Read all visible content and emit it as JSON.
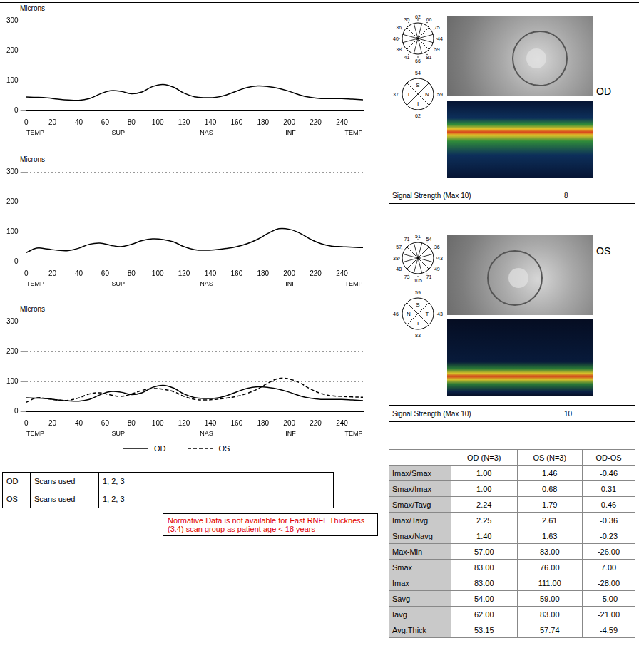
{
  "chart_data": [
    {
      "type": "line",
      "ylabel": "Microns",
      "x": [
        0,
        8,
        16,
        24,
        32,
        40,
        48,
        56,
        64,
        72,
        80,
        88,
        96,
        104,
        112,
        120,
        128,
        136,
        144,
        152,
        160,
        168,
        176,
        184,
        192,
        200,
        208,
        216,
        224,
        232,
        240,
        248,
        256
      ],
      "series": [
        {
          "name": "OD",
          "color": "#000000",
          "line_style": "solid",
          "values": [
            45,
            44,
            42,
            38,
            35,
            34,
            40,
            55,
            66,
            64,
            56,
            62,
            80,
            87,
            78,
            58,
            46,
            43,
            44,
            52,
            65,
            77,
            82,
            80,
            74,
            64,
            52,
            44,
            40,
            40,
            40,
            38,
            36
          ]
        }
      ],
      "xlim": [
        0,
        256
      ],
      "xticks": [
        0,
        20,
        40,
        60,
        80,
        100,
        120,
        140,
        160,
        180,
        200,
        220,
        240
      ],
      "ylim": [
        0,
        300
      ],
      "yticks": [
        0,
        100,
        200,
        300
      ],
      "grid": true,
      "region_labels": [
        {
          "value": 7,
          "label": "TEMP"
        },
        {
          "value": 70,
          "label": "SUP"
        },
        {
          "value": 137,
          "label": "NAS"
        },
        {
          "value": 201,
          "label": "INF"
        },
        {
          "value": 249,
          "label": "TEMP"
        }
      ]
    },
    {
      "type": "line",
      "ylabel": "Microns",
      "x": [
        0,
        8,
        16,
        24,
        32,
        40,
        48,
        56,
        64,
        72,
        80,
        88,
        96,
        104,
        112,
        120,
        128,
        136,
        144,
        152,
        160,
        168,
        176,
        184,
        192,
        200,
        208,
        216,
        224,
        232,
        240,
        248,
        256
      ],
      "series": [
        {
          "name": "OS",
          "color": "#000000",
          "line_style": "solid",
          "values": [
            30,
            45,
            42,
            38,
            37,
            45,
            58,
            62,
            55,
            50,
            58,
            70,
            76,
            74,
            66,
            50,
            40,
            38,
            40,
            44,
            50,
            60,
            75,
            95,
            110,
            108,
            95,
            75,
            60,
            52,
            50,
            48,
            47
          ]
        }
      ],
      "xlim": [
        0,
        256
      ],
      "xticks": [
        0,
        20,
        40,
        60,
        80,
        100,
        120,
        140,
        160,
        180,
        200,
        220,
        240
      ],
      "ylim": [
        0,
        300
      ],
      "yticks": [
        0,
        100,
        200,
        300
      ],
      "grid": true,
      "region_labels": [
        {
          "value": 7,
          "label": "TEMP"
        },
        {
          "value": 70,
          "label": "SUP"
        },
        {
          "value": 137,
          "label": "NAS"
        },
        {
          "value": 201,
          "label": "INF"
        },
        {
          "value": 249,
          "label": "TEMP"
        }
      ]
    },
    {
      "type": "line",
      "ylabel": "Microns",
      "x": [
        0,
        8,
        16,
        24,
        32,
        40,
        48,
        56,
        64,
        72,
        80,
        88,
        96,
        104,
        112,
        120,
        128,
        136,
        144,
        152,
        160,
        168,
        176,
        184,
        192,
        200,
        208,
        216,
        224,
        232,
        240,
        248,
        256
      ],
      "series": [
        {
          "name": "OD",
          "color": "#000000",
          "line_style": "solid",
          "values": [
            45,
            44,
            42,
            38,
            35,
            34,
            40,
            55,
            66,
            64,
            56,
            62,
            80,
            87,
            78,
            58,
            46,
            43,
            44,
            52,
            65,
            77,
            82,
            80,
            74,
            64,
            52,
            44,
            40,
            40,
            40,
            38,
            36
          ]
        },
        {
          "name": "OS",
          "color": "#000000",
          "line_style": "dashed",
          "values": [
            30,
            45,
            42,
            38,
            37,
            45,
            58,
            62,
            55,
            50,
            58,
            70,
            76,
            74,
            66,
            50,
            40,
            38,
            40,
            44,
            50,
            60,
            75,
            95,
            110,
            108,
            95,
            75,
            60,
            52,
            50,
            48,
            47
          ]
        }
      ],
      "xlim": [
        0,
        256
      ],
      "xticks": [
        0,
        20,
        40,
        60,
        80,
        100,
        120,
        140,
        160,
        180,
        200,
        220,
        240
      ],
      "ylim": [
        0,
        300
      ],
      "yticks": [
        0,
        100,
        200,
        300
      ],
      "grid": true,
      "legend": "bottom",
      "region_labels": [
        {
          "value": 7,
          "label": "TEMP"
        },
        {
          "value": 70,
          "label": "SUP"
        },
        {
          "value": 137,
          "label": "NAS"
        },
        {
          "value": 201,
          "label": "INF"
        },
        {
          "value": 249,
          "label": "TEMP"
        }
      ]
    }
  ],
  "scans_table": {
    "rows": [
      [
        "OD",
        "Scans used",
        "1, 2, 3"
      ],
      [
        "OS",
        "Scans used",
        "1, 2, 3"
      ]
    ]
  },
  "note": "Normative Data is not available for Fast RNFL Thickness (3.4) scan group as patient age < 18 years",
  "eyes": [
    {
      "label": "OD",
      "clock_hours": [
        62,
        66,
        75,
        44,
        59,
        81,
        66,
        41,
        38,
        40,
        36,
        35
      ],
      "quadrants": [
        {
          "label": "S",
          "value": 54
        },
        {
          "label": "N",
          "value": 59
        },
        {
          "label": "I",
          "value": 62
        },
        {
          "label": "T",
          "value": 37
        }
      ],
      "signal_strength_label": "Signal Strength (Max 10)",
      "signal_strength": 8
    },
    {
      "label": "OS",
      "clock_hours": [
        51,
        54,
        36,
        43,
        49,
        71,
        105,
        73,
        48,
        38,
        57,
        71
      ],
      "quadrants": [
        {
          "label": "S",
          "value": 59
        },
        {
          "label": "T",
          "value": 43
        },
        {
          "label": "I",
          "value": 83
        },
        {
          "label": "N",
          "value": 46
        }
      ],
      "signal_strength_label": "Signal Strength (Max 10)",
      "signal_strength": 10
    }
  ],
  "parameters_table": {
    "columns": [
      "OD (N=3)",
      "OS (N=3)",
      "OD-OS"
    ],
    "rows": [
      {
        "name": "Imax/Smax",
        "values": [
          "1.00",
          "1.46",
          "-0.46"
        ]
      },
      {
        "name": "Smax/Imax",
        "values": [
          "1.00",
          "0.68",
          "0.31"
        ]
      },
      {
        "name": "Smax/Tavg",
        "values": [
          "2.24",
          "1.79",
          "0.46"
        ]
      },
      {
        "name": "Imax/Tavg",
        "values": [
          "2.25",
          "2.61",
          "-0.36"
        ]
      },
      {
        "name": "Smax/Navg",
        "values": [
          "1.40",
          "1.63",
          "-0.23"
        ]
      },
      {
        "name": "Max-Min",
        "values": [
          "57.00",
          "83.00",
          "-26.00"
        ]
      },
      {
        "name": "Smax",
        "values": [
          "83.00",
          "76.00",
          "7.00"
        ]
      },
      {
        "name": "Imax",
        "values": [
          "83.00",
          "111.00",
          "-28.00"
        ]
      },
      {
        "name": "Savg",
        "values": [
          "54.00",
          "59.00",
          "-5.00"
        ]
      },
      {
        "name": "Iavg",
        "values": [
          "62.00",
          "83.00",
          "-21.00"
        ]
      },
      {
        "name": "Avg.Thick",
        "values": [
          "53.15",
          "57.74",
          "-4.59"
        ]
      }
    ]
  }
}
